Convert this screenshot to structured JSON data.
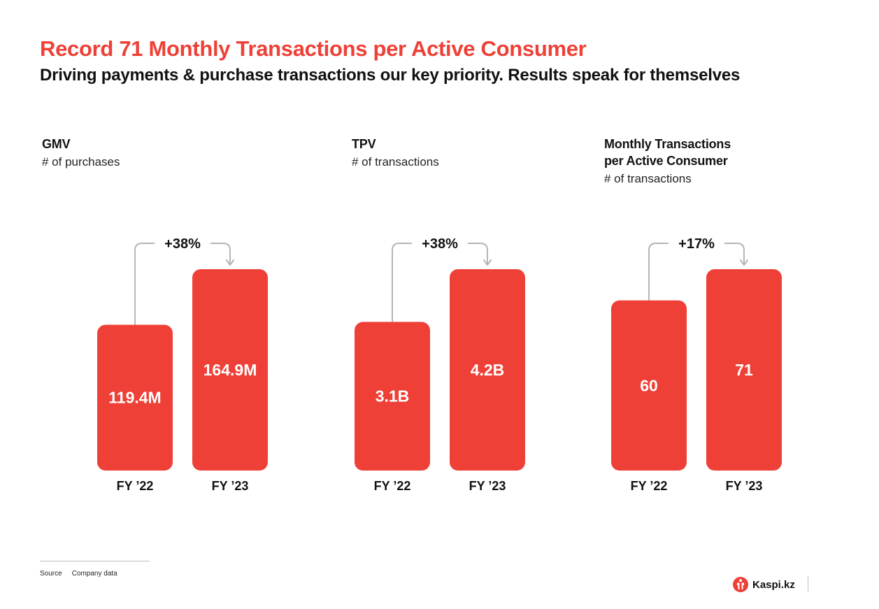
{
  "header": {
    "title": "Record 71 Monthly Transactions per Active Consumer",
    "subtitle": "Driving payments & purchase transactions our key priority. Results speak for themselves"
  },
  "colors": {
    "accent": "#ee4036",
    "connector": "#b5b5b5",
    "text": "#111111"
  },
  "chart_data": [
    {
      "type": "bar",
      "title": "GMV",
      "subtitle": "# of purchases",
      "categories": [
        "FY ’22",
        "FY ’23"
      ],
      "values": [
        119.4,
        164.9
      ],
      "value_labels": [
        "119.4M",
        "164.9M"
      ],
      "growth_label": "+38%",
      "legend": "none",
      "grid": false
    },
    {
      "type": "bar",
      "title": "TPV",
      "subtitle": "# of transactions",
      "categories": [
        "FY ’22",
        "FY ’23"
      ],
      "values": [
        3.1,
        4.2
      ],
      "value_labels": [
        "3.1B",
        "4.2B"
      ],
      "growth_label": "+38%",
      "legend": "none",
      "grid": false
    },
    {
      "type": "bar",
      "title": "Monthly Transactions per Active Consumer",
      "title_lines": [
        "Monthly Transactions",
        "per Active Consumer"
      ],
      "subtitle": "# of transactions",
      "categories": [
        "FY ’22",
        "FY ’23"
      ],
      "values": [
        60,
        71
      ],
      "value_labels": [
        "60",
        "71"
      ],
      "growth_label": "+17%",
      "legend": "none",
      "grid": false
    }
  ],
  "footer": {
    "source_label": "Source",
    "source_text": "Company data",
    "logo_text": "Kaspi.kz",
    "logo_icon": "kaspi-logo-icon"
  }
}
